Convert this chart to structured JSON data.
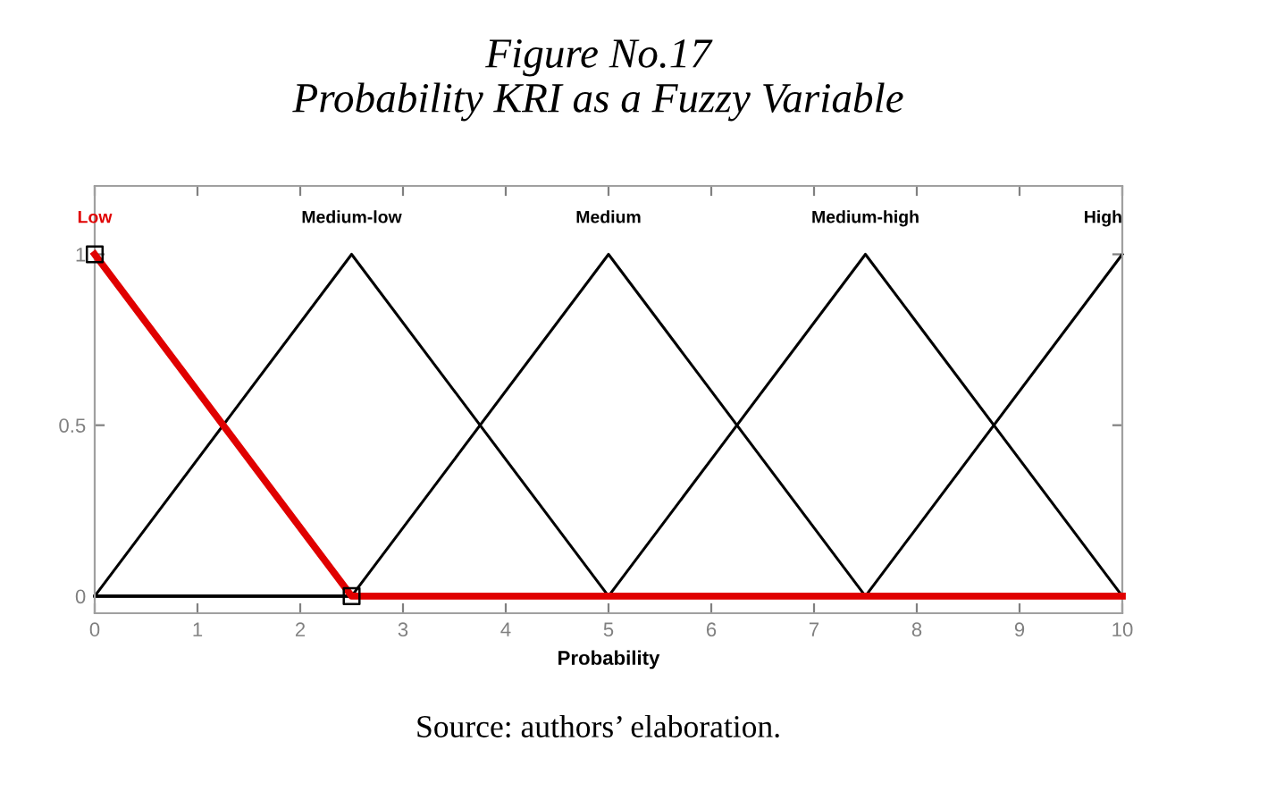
{
  "chart_data": {
    "type": "line",
    "title": "Figure No.17",
    "subtitle": "Probability KRI as a Fuzzy Variable",
    "xlabel": "Probability",
    "annotations": [
      "Source: authors’ elaboration."
    ],
    "x": [
      0,
      2.5,
      5,
      7.5,
      10
    ],
    "series": [
      {
        "name": "Low",
        "color": "#e00000",
        "values": [
          1,
          0,
          0,
          0,
          0
        ]
      },
      {
        "name": "Medium-low",
        "color": "#000000",
        "values": [
          0,
          1,
          0,
          0,
          0
        ]
      },
      {
        "name": "Medium",
        "color": "#000000",
        "values": [
          0,
          0,
          1,
          0,
          0
        ]
      },
      {
        "name": "Medium-high",
        "color": "#000000",
        "values": [
          0,
          0,
          0,
          1,
          0
        ]
      },
      {
        "name": "High",
        "color": "#000000",
        "values": [
          0,
          0,
          0,
          0,
          1
        ]
      },
      {
        "type": "scatter",
        "x": [
          0,
          2.5
        ],
        "values": [
          1,
          0
        ],
        "color": "#000000",
        "marker": "square"
      }
    ],
    "xlim": [
      0,
      10
    ],
    "ylim": [
      -0.05,
      1.2
    ],
    "xticks": [
      0,
      1,
      2,
      3,
      4,
      5,
      6,
      7,
      8,
      9,
      10
    ],
    "yticks": [
      0,
      0.5,
      1
    ]
  }
}
